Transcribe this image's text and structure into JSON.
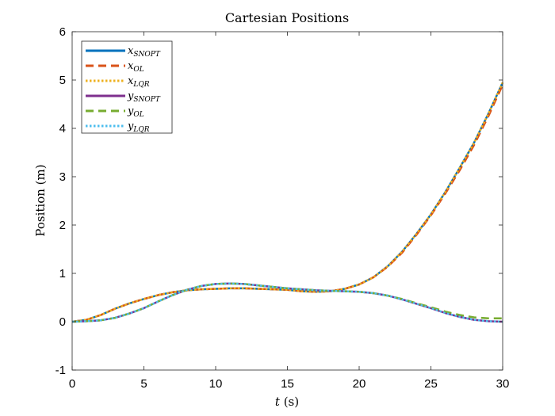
{
  "chart_data": {
    "type": "line",
    "title": "Cartesian Positions",
    "xlabel_var": "t",
    "xlabel_unit": " (s)",
    "ylabel": "Position (m)",
    "xlim": [
      0,
      30
    ],
    "ylim": [
      -1,
      6
    ],
    "xticks": [
      0,
      5,
      10,
      15,
      20,
      25,
      30
    ],
    "yticks": [
      -1,
      0,
      1,
      2,
      3,
      4,
      5,
      6
    ],
    "grid": false,
    "legend_position": "top-left",
    "x": [
      0,
      1,
      2,
      3,
      4,
      5,
      6,
      7,
      8,
      9,
      10,
      11,
      12,
      13,
      14,
      15,
      16,
      17,
      18,
      19,
      20,
      21,
      22,
      23,
      24,
      25,
      26,
      27,
      28,
      29,
      30
    ],
    "series": [
      {
        "base": "x",
        "sub": "SNOPT",
        "color": "#0072bd",
        "dash": "solid",
        "values": [
          0,
          0.04,
          0.14,
          0.27,
          0.38,
          0.47,
          0.55,
          0.61,
          0.65,
          0.67,
          0.68,
          0.69,
          0.69,
          0.68,
          0.67,
          0.66,
          0.63,
          0.62,
          0.63,
          0.68,
          0.77,
          0.92,
          1.15,
          1.45,
          1.82,
          2.22,
          2.68,
          3.18,
          3.7,
          4.3,
          4.95
        ]
      },
      {
        "base": "x",
        "sub": "OL",
        "color": "#d95319",
        "dash": "dash",
        "values": [
          0,
          0.04,
          0.14,
          0.27,
          0.38,
          0.47,
          0.55,
          0.61,
          0.65,
          0.67,
          0.68,
          0.69,
          0.69,
          0.68,
          0.67,
          0.66,
          0.63,
          0.62,
          0.63,
          0.68,
          0.77,
          0.92,
          1.14,
          1.43,
          1.8,
          2.2,
          2.65,
          3.13,
          3.65,
          4.25,
          4.9
        ]
      },
      {
        "base": "x",
        "sub": "LQR",
        "color": "#edb120",
        "dash": "dot",
        "values": [
          0,
          0.04,
          0.14,
          0.27,
          0.38,
          0.47,
          0.55,
          0.61,
          0.65,
          0.67,
          0.68,
          0.69,
          0.69,
          0.68,
          0.67,
          0.66,
          0.63,
          0.62,
          0.63,
          0.68,
          0.77,
          0.92,
          1.15,
          1.45,
          1.82,
          2.22,
          2.68,
          3.18,
          3.7,
          4.3,
          4.95
        ]
      },
      {
        "base": "y",
        "sub": "SNOPT",
        "color": "#7e2f8e",
        "dash": "solid",
        "values": [
          0,
          0.01,
          0.03,
          0.08,
          0.17,
          0.28,
          0.42,
          0.55,
          0.66,
          0.74,
          0.78,
          0.79,
          0.78,
          0.75,
          0.72,
          0.69,
          0.67,
          0.65,
          0.64,
          0.63,
          0.62,
          0.59,
          0.54,
          0.46,
          0.37,
          0.28,
          0.18,
          0.1,
          0.04,
          0.01,
          0
        ]
      },
      {
        "base": "y",
        "sub": "OL",
        "color": "#77ac30",
        "dash": "dash",
        "values": [
          0,
          0.01,
          0.03,
          0.08,
          0.17,
          0.28,
          0.42,
          0.55,
          0.66,
          0.74,
          0.78,
          0.79,
          0.78,
          0.75,
          0.72,
          0.69,
          0.67,
          0.65,
          0.64,
          0.63,
          0.62,
          0.59,
          0.54,
          0.47,
          0.38,
          0.3,
          0.21,
          0.14,
          0.09,
          0.07,
          0.07
        ]
      },
      {
        "base": "y",
        "sub": "LQR",
        "color": "#4dbeee",
        "dash": "dot",
        "values": [
          0,
          0.01,
          0.03,
          0.08,
          0.17,
          0.28,
          0.42,
          0.55,
          0.66,
          0.74,
          0.78,
          0.79,
          0.78,
          0.75,
          0.72,
          0.69,
          0.67,
          0.65,
          0.64,
          0.63,
          0.62,
          0.59,
          0.54,
          0.46,
          0.37,
          0.28,
          0.18,
          0.1,
          0.04,
          0.01,
          0
        ]
      }
    ]
  }
}
